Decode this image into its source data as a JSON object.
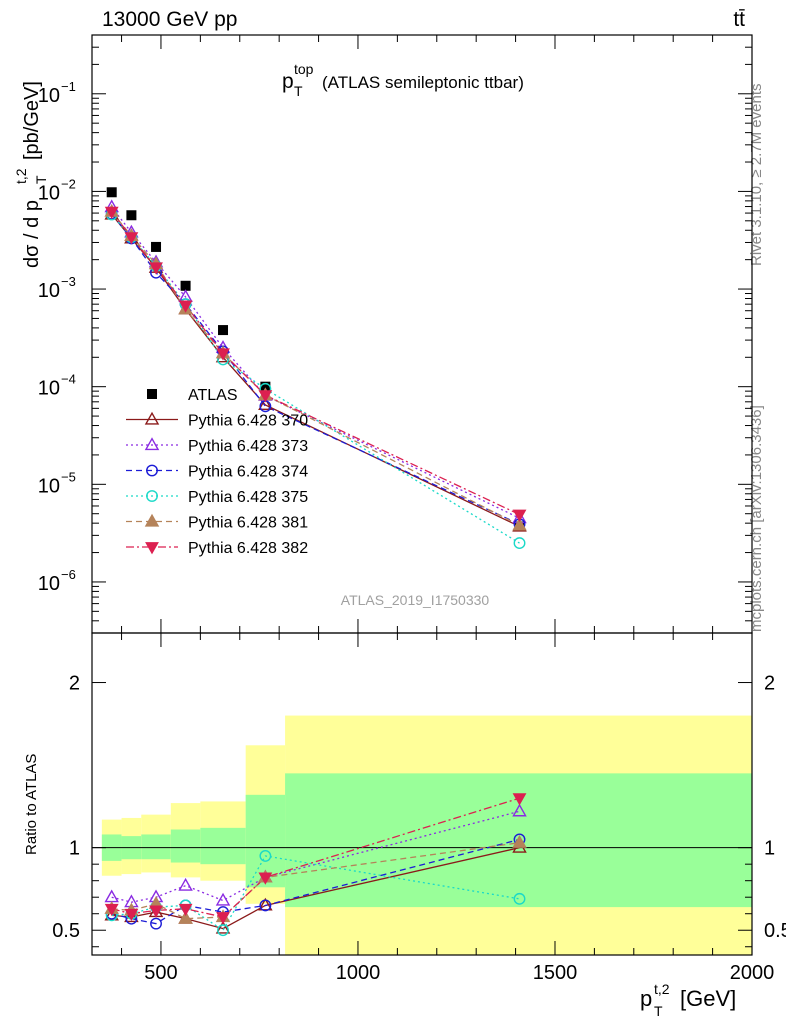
{
  "header": {
    "left": "13000 GeV pp",
    "right": "tt̄"
  },
  "side_labels": {
    "rivet": "Rivet 3.1.10, ≥ 2.7M events",
    "mcplots": "mcplots.cern.ch [arXiv:1306.3436]"
  },
  "chart_data": [
    {
      "type": "scatter",
      "panel": "main",
      "title": "(ATLAS semileptonic ttbar)",
      "title_symbol": "p",
      "title_sub": "T",
      "title_sup": "top",
      "analysis_label": "ATLAS_2019_I1750330",
      "ylabel": "dσ / d p",
      "ylabel_sub": "T",
      "ylabel_sup": "t,2",
      "ylabel_unit": "[pb/GeV]",
      "yscale": "log",
      "ylim": [
        3e-07,
        0.4
      ],
      "xlim": [
        325,
        2000
      ],
      "y_ticks": [
        {
          "value": 0.1,
          "mantissa": "10",
          "exp": "−1"
        },
        {
          "value": 0.01,
          "mantissa": "10",
          "exp": "−2"
        },
        {
          "value": 0.001,
          "mantissa": "10",
          "exp": "−3"
        },
        {
          "value": 0.0001,
          "mantissa": "10",
          "exp": "−4"
        },
        {
          "value": 1e-05,
          "mantissa": "10",
          "exp": "−5"
        },
        {
          "value": 1e-06,
          "mantissa": "10",
          "exp": "−6"
        }
      ],
      "legend_position": "middle-left",
      "x": [
        375,
        425,
        487.5,
        562.5,
        657.5,
        765,
        1410
      ],
      "series": [
        {
          "name": "ATLAS",
          "color": "#000000",
          "marker": "square-filled",
          "values": [
            0.0098,
            0.0057,
            0.0027,
            0.00108,
            0.00038,
            0.0001,
            3.7e-06
          ]
        },
        {
          "name": "Pythia 6.428 370",
          "color": "#8b1a1a",
          "marker": "triangle-open",
          "line": "solid",
          "values": [
            0.0058,
            0.0033,
            0.00165,
            0.00062,
            0.0002,
            6.5e-05,
            3.7e-06
          ]
        },
        {
          "name": "Pythia 6.428 373",
          "color": "#8a2be2",
          "marker": "triangle-open",
          "line": "dotted",
          "values": [
            0.0069,
            0.0038,
            0.00188,
            0.00083,
            0.00025,
            8.1e-05,
            4.5e-06
          ]
        },
        {
          "name": "Pythia 6.428 374",
          "color": "#1c1cd6",
          "marker": "circle-open",
          "line": "dashed",
          "values": [
            0.0059,
            0.0033,
            0.00147,
            0.0007,
            0.00023,
            6.3e-05,
            3.9e-06
          ]
        },
        {
          "name": "Pythia 6.428 375",
          "color": "#1ad9c8",
          "marker": "circle-open",
          "line": "dotted",
          "values": [
            0.0058,
            0.0034,
            0.00172,
            0.0007,
            0.00019,
            9.5e-05,
            2.5e-06
          ]
        },
        {
          "name": "Pythia 6.428 381",
          "color": "#b5835a",
          "marker": "triangle-filled",
          "line": "dashed",
          "values": [
            0.0062,
            0.0035,
            0.0018,
            0.00062,
            0.00022,
            8.2e-05,
            3.8e-06
          ]
        },
        {
          "name": "Pythia 6.428 382",
          "color": "#dc2050",
          "marker": "triangle-down-filled",
          "line": "dashdot",
          "values": [
            0.0062,
            0.0034,
            0.00167,
            0.00068,
            0.00022,
            8.2e-05,
            4.9e-06
          ]
        }
      ]
    },
    {
      "type": "scatter",
      "panel": "ratio",
      "ylabel": "Ratio to ATLAS",
      "xlabel": "p",
      "xlabel_sub": "T",
      "xlabel_sup": "t,2",
      "xlabel_unit": "[GeV]",
      "xlim": [
        325,
        2000
      ],
      "ylim": [
        0.35,
        2.3
      ],
      "x_ticks": [
        500,
        1000,
        1500,
        2000
      ],
      "y_ticks": [
        0.5,
        1,
        2
      ],
      "reference_line": 1,
      "bins": [
        {
          "xlow": 350,
          "xhigh": 400,
          "yellow": [
            0.83,
            1.17
          ],
          "green": [
            0.92,
            1.08
          ]
        },
        {
          "xlow": 400,
          "xhigh": 450,
          "yellow": [
            0.84,
            1.18
          ],
          "green": [
            0.93,
            1.07
          ]
        },
        {
          "xlow": 450,
          "xhigh": 525,
          "yellow": [
            0.85,
            1.2
          ],
          "green": [
            0.93,
            1.08
          ]
        },
        {
          "xlow": 525,
          "xhigh": 600,
          "yellow": [
            0.82,
            1.27
          ],
          "green": [
            0.91,
            1.11
          ]
        },
        {
          "xlow": 600,
          "xhigh": 715,
          "yellow": [
            0.8,
            1.28
          ],
          "green": [
            0.9,
            1.12
          ]
        },
        {
          "xlow": 715,
          "xhigh": 815,
          "yellow": [
            0.66,
            1.62
          ],
          "green": [
            0.76,
            1.32
          ]
        },
        {
          "xlow": 815,
          "xhigh": 2000,
          "yellow": [
            0.35,
            1.8
          ],
          "green": [
            0.64,
            1.45
          ]
        }
      ],
      "x": [
        375,
        425,
        487.5,
        562.5,
        657.5,
        765,
        1410
      ],
      "series": [
        {
          "name": "Pythia 6.428 370",
          "color": "#8b1a1a",
          "values": [
            0.59,
            0.58,
            0.61,
            0.57,
            0.51,
            0.65,
            1.0
          ]
        },
        {
          "name": "Pythia 6.428 373",
          "color": "#8a2be2",
          "values": [
            0.7,
            0.67,
            0.7,
            0.77,
            0.68,
            0.82,
            1.22
          ]
        },
        {
          "name": "Pythia 6.428 374",
          "color": "#1c1cd6",
          "values": [
            0.6,
            0.57,
            0.54,
            0.65,
            0.61,
            0.65,
            1.05
          ]
        },
        {
          "name": "Pythia 6.428 375",
          "color": "#1ad9c8",
          "values": [
            0.59,
            0.6,
            0.64,
            0.65,
            0.5,
            0.95,
            0.69
          ]
        },
        {
          "name": "Pythia 6.428 381",
          "color": "#b5835a",
          "values": [
            0.63,
            0.62,
            0.66,
            0.57,
            0.58,
            0.82,
            1.03
          ]
        },
        {
          "name": "Pythia 6.428 382",
          "color": "#dc2050",
          "values": [
            0.63,
            0.6,
            0.62,
            0.63,
            0.58,
            0.82,
            1.3
          ]
        }
      ]
    }
  ]
}
